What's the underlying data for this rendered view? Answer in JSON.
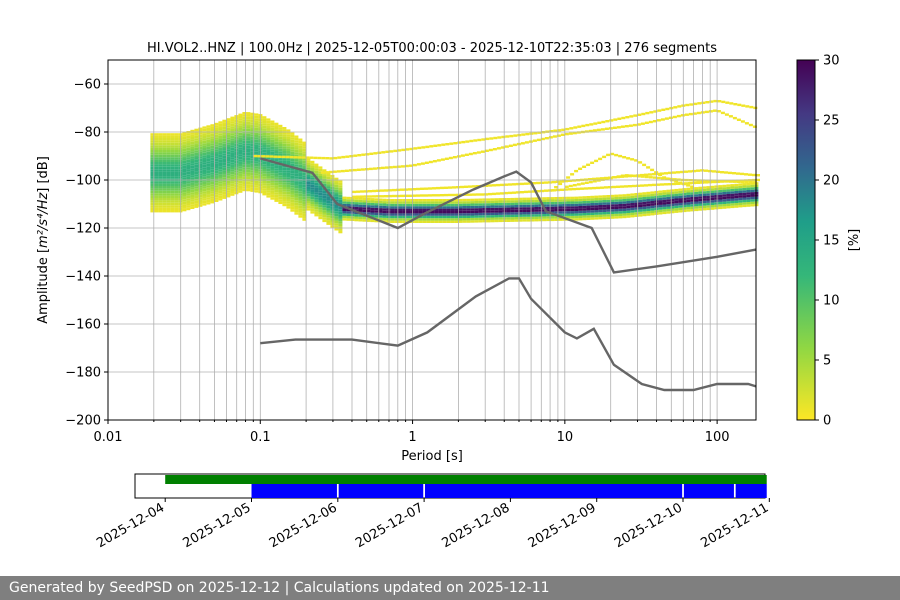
{
  "chart_data": [
    {
      "type": "heatmap",
      "title": "HI.VOL2..HNZ | 100.0Hz | 2025-12-05T00:00:03 - 2025-12-10T22:35:03 | 276 segments",
      "xlabel": "Period [s]",
      "ylabel": "Amplitude [$m^2/s^4/Hz$] [dB]",
      "ylabel_parts": {
        "prefix": "Amplitude [",
        "math": "m²/s⁴/Hz",
        "suffix": "] [dB]"
      },
      "x_scale": "log",
      "xlim": [
        0.01,
        180
      ],
      "ylim": [
        -200,
        -50
      ],
      "x_ticks": [
        0.01,
        0.1,
        1,
        10,
        100
      ],
      "x_tick_labels": [
        "0.01",
        "0.1",
        "1",
        "10",
        "100"
      ],
      "y_ticks": [
        -200,
        -180,
        -160,
        -140,
        -120,
        -100,
        -80,
        -60
      ],
      "y_tick_labels": [
        "−200",
        "−180",
        "−160",
        "−140",
        "−120",
        "−100",
        "−80",
        "−60"
      ],
      "grid": true,
      "colormap": "viridis_r",
      "colorbar": {
        "label": "[%]",
        "range": [
          0,
          30
        ],
        "ticks": [
          0,
          5,
          10,
          15,
          20,
          25,
          30
        ],
        "tick_labels": [
          "0",
          "5",
          "10",
          "15",
          "20",
          "25",
          "30"
        ]
      },
      "noise_model_high": {
        "name": "",
        "color": "#666666",
        "points": [
          [
            0.1,
            -91
          ],
          [
            0.22,
            -97
          ],
          [
            0.32,
            -110
          ],
          [
            0.8,
            -120
          ],
          [
            1.2,
            -114
          ],
          [
            2.5,
            -104
          ],
          [
            4.0,
            -98.5
          ],
          [
            4.8,
            -96.5
          ],
          [
            6.0,
            -101
          ],
          [
            7.5,
            -113
          ],
          [
            15,
            -120
          ],
          [
            21,
            -138.5
          ],
          [
            40,
            -136
          ],
          [
            100,
            -132
          ],
          [
            180,
            -129
          ]
        ]
      },
      "noise_model_low": {
        "name": "",
        "color": "#666666",
        "points": [
          [
            0.1,
            -168
          ],
          [
            0.17,
            -166.5
          ],
          [
            0.4,
            -166.5
          ],
          [
            0.8,
            -169
          ],
          [
            1.25,
            -163.5
          ],
          [
            2.6,
            -148.5
          ],
          [
            4.3,
            -141
          ],
          [
            5.0,
            -141
          ],
          [
            6.0,
            -149.5
          ],
          [
            10,
            -163.5
          ],
          [
            12,
            -166
          ],
          [
            15.5,
            -162
          ],
          [
            21,
            -177
          ],
          [
            32,
            -185
          ],
          [
            45,
            -187.5
          ],
          [
            70,
            -187.5
          ],
          [
            100,
            -185
          ],
          [
            160,
            -185
          ],
          [
            180,
            -186
          ]
        ]
      },
      "ppsd_mode": {
        "period_range": [
          0.019,
          180
        ],
        "points": [
          [
            0.02,
            -97
          ],
          [
            0.03,
            -97
          ],
          [
            0.05,
            -93
          ],
          [
            0.08,
            -88
          ],
          [
            0.1,
            -89
          ],
          [
            0.15,
            -95
          ],
          [
            0.22,
            -103
          ],
          [
            0.35,
            -112
          ],
          [
            0.7,
            -113
          ],
          [
            2,
            -113
          ],
          [
            5,
            -112.5
          ],
          [
            12,
            -112
          ],
          [
            25,
            -111
          ],
          [
            60,
            -108.5
          ],
          [
            180,
            -106
          ]
        ]
      },
      "ppsd_outliers": [
        {
          "points": [
            [
              0.09,
              -90
            ],
            [
              0.3,
              -91
            ],
            [
              1,
              -87
            ],
            [
              3,
              -83
            ],
            [
              10,
              -79
            ],
            [
              30,
              -73
            ],
            [
              60,
              -69
            ],
            [
              100,
              -67
            ],
            [
              180,
              -70
            ]
          ]
        },
        {
          "points": [
            [
              0.25,
              -97
            ],
            [
              1,
              -94
            ],
            [
              3,
              -88
            ],
            [
              10,
              -81
            ],
            [
              30,
              -77
            ],
            [
              60,
              -73
            ],
            [
              100,
              -71
            ],
            [
              180,
              -78
            ]
          ]
        },
        {
          "points": [
            [
              0.4,
              -105
            ],
            [
              2,
              -103
            ],
            [
              8,
              -101
            ],
            [
              20,
              -99
            ],
            [
              80,
              -96
            ],
            [
              180,
              -98
            ]
          ]
        },
        {
          "points": [
            [
              0.4,
              -107
            ],
            [
              3,
              -106
            ],
            [
              10,
              -104
            ],
            [
              40,
              -102
            ],
            [
              180,
              -100
            ]
          ]
        },
        {
          "points": [
            [
              8,
              -105
            ],
            [
              12,
              -96
            ],
            [
              20,
              -89
            ],
            [
              30,
              -92
            ],
            [
              45,
              -99
            ],
            [
              70,
              -103
            ]
          ]
        },
        {
          "points": [
            [
              10,
              -103
            ],
            [
              25,
              -98
            ],
            [
              60,
              -100
            ],
            [
              180,
              -101
            ]
          ]
        }
      ]
    },
    {
      "type": "timeline",
      "x_tick_labels": [
        "2025-12-04",
        "2025-12-05",
        "2025-12-06",
        "2025-12-07",
        "2025-12-08",
        "2025-12-09",
        "2025-12-10",
        "2025-12-11"
      ],
      "x_range_days": [
        -0.35,
        6.95
      ],
      "data_coverage": {
        "color": "#008000",
        "start_day": 0.0,
        "end_day": 6.97
      },
      "segment_coverage": {
        "color": "#0000ff",
        "segments": [
          [
            1.0,
            1.99
          ],
          [
            2.01,
            2.99
          ],
          [
            3.01,
            5.99
          ],
          [
            6.01,
            6.59
          ],
          [
            6.61,
            6.97
          ]
        ]
      }
    }
  ],
  "footer": {
    "text": "Generated by SeedPSD on 2025-12-12 | Calculations updated on 2025-12-11"
  }
}
